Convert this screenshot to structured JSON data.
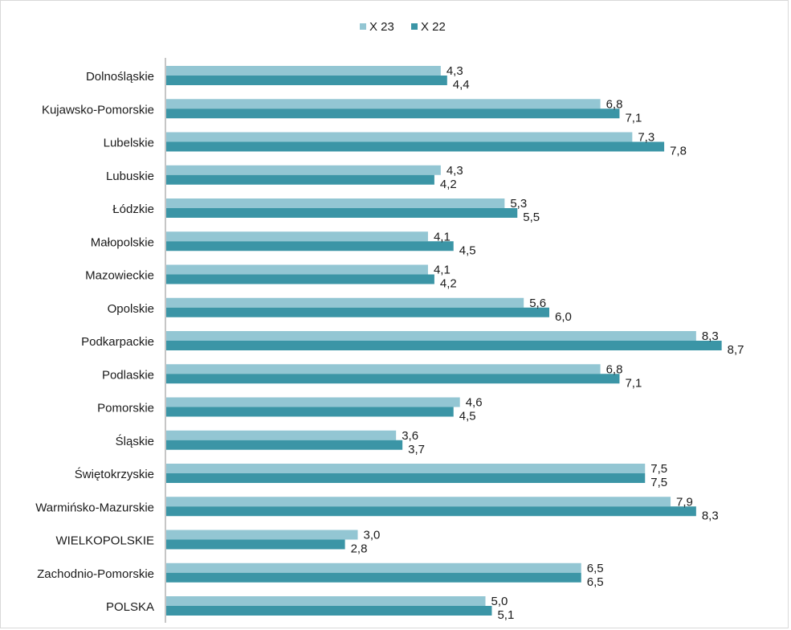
{
  "chart_data": {
    "type": "bar",
    "orientation": "horizontal",
    "categories": [
      "Dolnośląskie",
      "Kujawsko-Pomorskie",
      "Lubelskie",
      "Lubuskie",
      "Łódzkie",
      "Małopolskie",
      "Mazowieckie",
      "Opolskie",
      "Podkarpackie",
      "Podlaskie",
      "Pomorskie",
      "Śląskie",
      "Świętokrzyskie",
      "Warmińsko-Mazurskie",
      "WIELKOPOLSKIE",
      "Zachodnio-Pomorskie",
      "POLSKA"
    ],
    "series": [
      {
        "name": "X 23",
        "color": "#93c6d3",
        "values": [
          4.3,
          6.8,
          7.3,
          4.3,
          5.3,
          4.1,
          4.1,
          5.6,
          8.3,
          6.8,
          4.6,
          3.6,
          7.5,
          7.9,
          3.0,
          6.5,
          5.0
        ],
        "labels": [
          "4,3",
          "6,8",
          "7,3",
          "4,3",
          "5,3",
          "4,1",
          "4,1",
          "5,6",
          "8,3",
          "6,8",
          "4,6",
          "3,6",
          "7,5",
          "7,9",
          "3,0",
          "6,5",
          "5,0"
        ]
      },
      {
        "name": "X 22",
        "color": "#3b95a6",
        "values": [
          4.4,
          7.1,
          7.8,
          4.2,
          5.5,
          4.5,
          4.2,
          6.0,
          8.7,
          7.1,
          4.5,
          3.7,
          7.5,
          8.3,
          2.8,
          6.5,
          5.1
        ],
        "labels": [
          "4,4",
          "7,1",
          "7,8",
          "4,2",
          "5,5",
          "4,5",
          "4,2",
          "6,0",
          "8,7",
          "7,1",
          "4,5",
          "3,7",
          "7,5",
          "8,3",
          "2,8",
          "6,5",
          "5,1"
        ]
      }
    ],
    "xlim": [
      0,
      9
    ],
    "legend_position": "top-center",
    "grid": false
  }
}
